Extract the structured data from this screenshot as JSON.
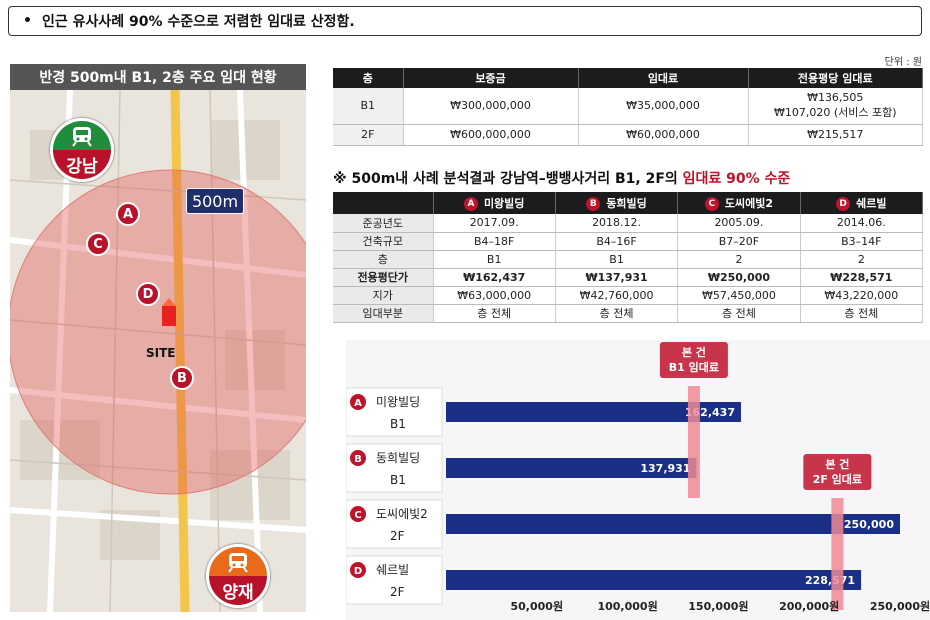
{
  "banner": {
    "bullet": "•",
    "text": "인근 유사사례 90% 수준으로 저렴한 임대료 산정함."
  },
  "unit_label": "단위 : 원",
  "map": {
    "title": "반경 500m내 B1, 2층 주요 임대 현황",
    "radius_badge": "500m",
    "site_label": "SITE",
    "station_top": {
      "name": "강남"
    },
    "station_bottom": {
      "name": "양재"
    },
    "markers": [
      "A",
      "B",
      "C",
      "D"
    ]
  },
  "rent_table": {
    "headers": [
      "층",
      "보증금",
      "임대료",
      "전용평당 임대료"
    ],
    "rows": [
      {
        "floor": "B1",
        "deposit": "₩300,000,000",
        "rent": "₩35,000,000",
        "per_pyeong": "₩136,505",
        "per_pyeong_note": "₩107,020 (서비스 포함)"
      },
      {
        "floor": "2F",
        "deposit": "₩600,000,000",
        "rent": "₩60,000,000",
        "per_pyeong": "₩215,517",
        "per_pyeong_note": ""
      }
    ]
  },
  "headline": {
    "prefix": "※ 500m내 사례 분석결과 강남역–뱅뱅사거리 B1, 2F의 ",
    "highlight": "임대료 90% 수준"
  },
  "comp_table": {
    "headers": [
      {
        "mark": "A",
        "name": "미왕빌딩"
      },
      {
        "mark": "B",
        "name": "동희빌딩"
      },
      {
        "mark": "C",
        "name": "도씨에빛2"
      },
      {
        "mark": "D",
        "name": "쉐르빌"
      }
    ],
    "rows": [
      {
        "label": "준공년도",
        "values": [
          "2017.09.",
          "2018.12.",
          "2005.09.",
          "2014.06."
        ]
      },
      {
        "label": "건축규모",
        "values": [
          "B4–18F",
          "B4–16F",
          "B7–20F",
          "B3–14F"
        ]
      },
      {
        "label": "층",
        "values": [
          "B1",
          "B1",
          "2",
          "2"
        ]
      },
      {
        "label": "전용평단가",
        "values": [
          "₩162,437",
          "₩137,931",
          "₩250,000",
          "₩228,571"
        ]
      },
      {
        "label": "지가",
        "values": [
          "₩63,000,000",
          "₩42,760,000",
          "₩57,450,000",
          "₩43,220,000"
        ]
      },
      {
        "label": "임대부분",
        "values": [
          "층 전체",
          "층 전체",
          "층 전체",
          "층 전체"
        ]
      }
    ]
  },
  "chart_data": {
    "type": "bar",
    "orientation": "horizontal",
    "categories": [
      {
        "mark": "A",
        "name": "미왕빌딩",
        "floor": "B1"
      },
      {
        "mark": "B",
        "name": "동희빌딩",
        "floor": "B1"
      },
      {
        "mark": "C",
        "name": "도씨에빛2",
        "floor": "2F"
      },
      {
        "mark": "D",
        "name": "쉐르빌",
        "floor": "2F"
      }
    ],
    "values": [
      162437,
      137931,
      250000,
      228571
    ],
    "value_labels": [
      "162,437",
      "137,931",
      "250,000",
      "228,571"
    ],
    "x_ticks": [
      50000,
      100000,
      150000,
      200000,
      250000
    ],
    "x_tick_labels": [
      "50,000원",
      "100,000원",
      "150,000원",
      "200,000원",
      "250,000원"
    ],
    "xlim": [
      0,
      250000
    ],
    "reference_lines": [
      {
        "value": 136505,
        "label_line1": "본 건",
        "label_line2": "B1 임대료",
        "applies_to": [
          0,
          1
        ]
      },
      {
        "value": 215517,
        "label_line1": "본 건",
        "label_line2": "2F 임대료",
        "applies_to": [
          2,
          3
        ]
      }
    ],
    "bar_color": "#1a2f86",
    "ref_color": "#f08a95",
    "marker_color": "#c0122a"
  }
}
